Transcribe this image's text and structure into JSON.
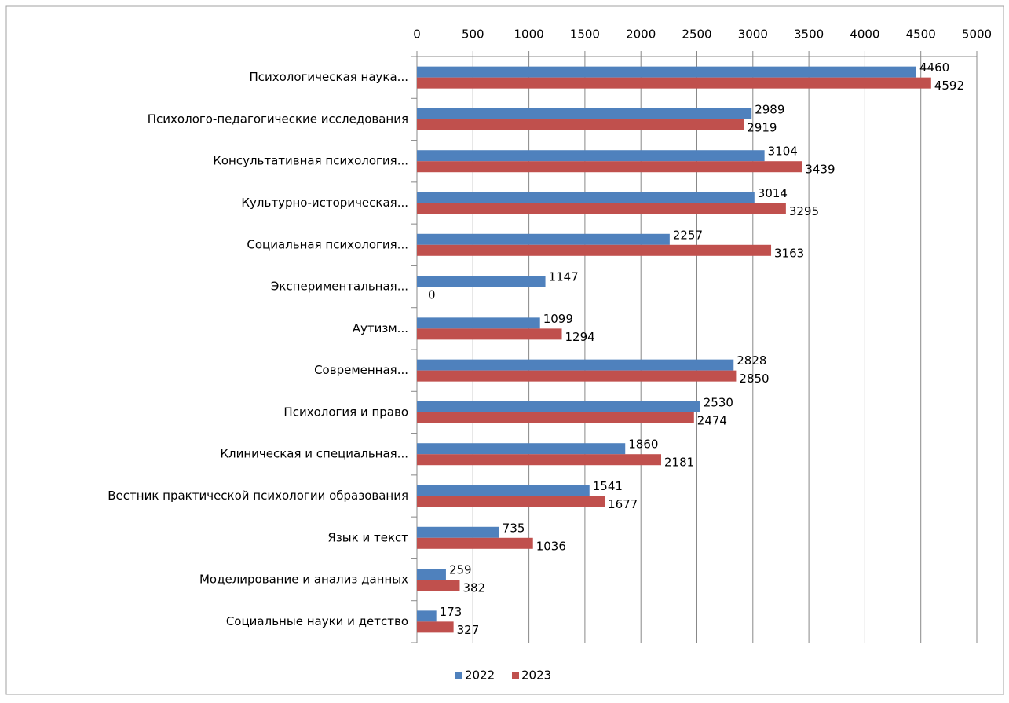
{
  "chart_data": {
    "type": "barh",
    "categories": [
      "Психологическая наука...",
      "Психолого-педагогические исследования",
      "Консультативная психология...",
      "Культурно-историческая...",
      "Социальная психология...",
      "Экспериментальная...",
      "Аутизм...",
      "Современная...",
      "Психология и право",
      "Клиническая и специальная...",
      "Вестник практической психологии образования",
      "Язык и текст",
      "Моделирование и анализ данных",
      "Социальные науки и детство"
    ],
    "series": [
      {
        "name": "2022",
        "color": "#4f81bd",
        "values": [
          4460,
          2989,
          3104,
          3014,
          2257,
          1147,
          1099,
          2828,
          2530,
          1860,
          1541,
          735,
          259,
          173
        ]
      },
      {
        "name": "2023",
        "color": "#c0504d",
        "values": [
          4592,
          2919,
          3439,
          3295,
          3163,
          0,
          1294,
          2850,
          2474,
          2181,
          1677,
          1036,
          382,
          327
        ]
      }
    ],
    "xlim": [
      0,
      5000
    ],
    "xticks": [
      0,
      500,
      1000,
      1500,
      2000,
      2500,
      3000,
      3500,
      4000,
      4500,
      5000
    ],
    "grid": true,
    "legend": "bottom"
  }
}
